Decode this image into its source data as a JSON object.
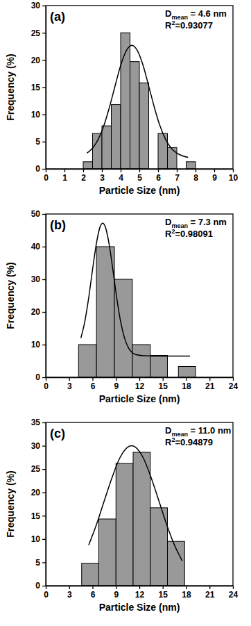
{
  "chart_data": [
    {
      "type": "histogram",
      "title": "(a)",
      "x_label": "Particle Size (nm)",
      "y_label": "Frequency (%)",
      "bins": [
        2.0,
        2.5,
        3.0,
        3.5,
        4.0,
        4.5,
        5.0,
        5.5,
        6.0,
        6.5,
        7.0,
        7.5,
        8.0
      ],
      "values": [
        1.3,
        6.5,
        7.9,
        11.8,
        25.0,
        19.7,
        15.8,
        0,
        6.5,
        3.9,
        0,
        1.3
      ],
      "color": "#999999",
      "xlim": [
        0,
        10
      ],
      "xticks": [
        0,
        1,
        2,
        3,
        4,
        5,
        6,
        7,
        8,
        9,
        10
      ],
      "ylim": [
        0,
        30
      ],
      "yticks": [
        0,
        5,
        10,
        15,
        20,
        25,
        30
      ],
      "grid": false,
      "series": [
        {
          "type": "line",
          "color": "#000000",
          "x": [
            2.2,
            2.5,
            2.8,
            3.1,
            3.4,
            3.7,
            4.0,
            4.3,
            4.6,
            4.9,
            5.2,
            5.5,
            5.8,
            6.1,
            6.4,
            6.7,
            7.0,
            7.3,
            7.6
          ],
          "values": [
            2.9,
            3.8,
            5.4,
            7.9,
            11.3,
            15.2,
            19.0,
            21.7,
            22.7,
            21.7,
            19.0,
            15.2,
            11.3,
            7.9,
            5.4,
            3.8,
            2.9,
            2.4,
            2.1
          ]
        }
      ],
      "annotations": [
        {
          "parts": [
            "D",
            {
              "sub": "mean"
            },
            " = 4.6 nm"
          ]
        },
        {
          "parts": [
            "R",
            {
              "sup": "2"
            },
            "=0.93077"
          ]
        }
      ]
    },
    {
      "type": "histogram",
      "title": "(b)",
      "x_label": "Particle Size (nm)",
      "y_label": "Frequency (%)",
      "bins": [
        4.2,
        6.5,
        8.8,
        11.1,
        13.4,
        15.6,
        17.0,
        19.2
      ],
      "values": [
        10,
        40,
        30,
        10,
        6.7,
        0,
        3.3
      ],
      "color": "#999999",
      "xlim": [
        0,
        24
      ],
      "xticks": [
        0,
        3,
        6,
        9,
        12,
        15,
        18,
        21,
        24
      ],
      "ylim": [
        0,
        50
      ],
      "yticks": [
        0,
        10,
        20,
        30,
        40,
        50
      ],
      "grid": false,
      "series": [
        {
          "type": "line",
          "color": "#000000",
          "x": [
            4.5,
            5.0,
            5.5,
            6.0,
            6.5,
            7.0,
            7.3,
            7.6,
            8.1,
            8.6,
            9.1,
            9.6,
            10.1,
            10.6,
            11.1,
            11.6,
            12.5,
            14.0,
            16.0,
            18.5
          ],
          "values": [
            12.0,
            17.0,
            24.3,
            33.0,
            41.1,
            46.3,
            47.2,
            46.3,
            41.1,
            33.0,
            24.3,
            17.0,
            12.0,
            9.0,
            7.5,
            6.9,
            6.6,
            6.5,
            6.5,
            6.5
          ]
        }
      ],
      "annotations": [
        {
          "parts": [
            "D",
            {
              "sub": "mean"
            },
            " = 7.3 nm"
          ]
        },
        {
          "parts": [
            "R",
            {
              "sup": "2"
            },
            "=0.98091"
          ]
        }
      ]
    },
    {
      "type": "histogram",
      "title": "(c)",
      "x_label": "Particle Size (nm)",
      "y_label": "Frequency (%)",
      "bins": [
        4.6,
        6.8,
        9.0,
        11.2,
        13.4,
        15.6,
        17.8
      ],
      "values": [
        4.8,
        14.3,
        26.2,
        28.6,
        16.7,
        9.5
      ],
      "color": "#999999",
      "xlim": [
        0,
        24
      ],
      "xticks": [
        0,
        3,
        6,
        9,
        12,
        15,
        18,
        21,
        24
      ],
      "ylim": [
        0,
        35
      ],
      "yticks": [
        0,
        5,
        10,
        15,
        20,
        25,
        30,
        35
      ],
      "grid": false,
      "series": [
        {
          "type": "line",
          "color": "#000000",
          "x": [
            5.5,
            6.5,
            7.5,
            8.5,
            9.5,
            10.5,
            11.0,
            11.5,
            12.5,
            13.5,
            14.5,
            15.5,
            16.5,
            17.5
          ],
          "values": [
            8.7,
            13.1,
            18.2,
            23.2,
            27.4,
            29.7,
            30.0,
            29.7,
            27.4,
            23.2,
            18.2,
            13.1,
            8.7,
            5.3
          ]
        }
      ],
      "annotations": [
        {
          "parts": [
            "D",
            {
              "sub": "mean"
            },
            " = 11.0 nm"
          ]
        },
        {
          "parts": [
            "R",
            {
              "sup": "2"
            },
            "=0.94879"
          ]
        }
      ]
    }
  ]
}
